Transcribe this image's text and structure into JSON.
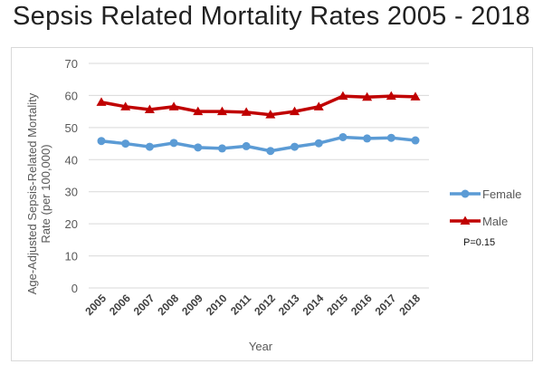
{
  "title": "Sepsis Related Mortality Rates 2005 - 2018",
  "annotation": "P=0.15",
  "chart_data": {
    "type": "line",
    "title": "Sepsis Related Mortality Rates 2005 - 2018",
    "xlabel": "Year",
    "ylabel": "Age-Adjusted Sepsis-Related Mortality Rate (per 100,000)",
    "ylim": [
      0,
      70
    ],
    "yticks": [
      0,
      10,
      20,
      30,
      40,
      50,
      60,
      70
    ],
    "grid": true,
    "legend": "right",
    "categories": [
      "2005",
      "2006",
      "2007",
      "2008",
      "2009",
      "2010",
      "2011",
      "2012",
      "2013",
      "2014",
      "2015",
      "2016",
      "2017",
      "2018"
    ],
    "series": [
      {
        "name": "Female",
        "color": "#5b9bd5",
        "marker": "circle",
        "values": [
          45.8,
          45.0,
          44.0,
          45.2,
          43.8,
          43.5,
          44.2,
          42.7,
          44.0,
          45.1,
          47.0,
          46.6,
          46.8,
          46.0
        ]
      },
      {
        "name": "Male",
        "color": "#c00000",
        "marker": "triangle",
        "values": [
          57.9,
          56.5,
          55.6,
          56.5,
          55.0,
          55.0,
          54.8,
          54.0,
          55.0,
          56.5,
          59.8,
          59.5,
          59.8,
          59.6
        ]
      }
    ]
  }
}
